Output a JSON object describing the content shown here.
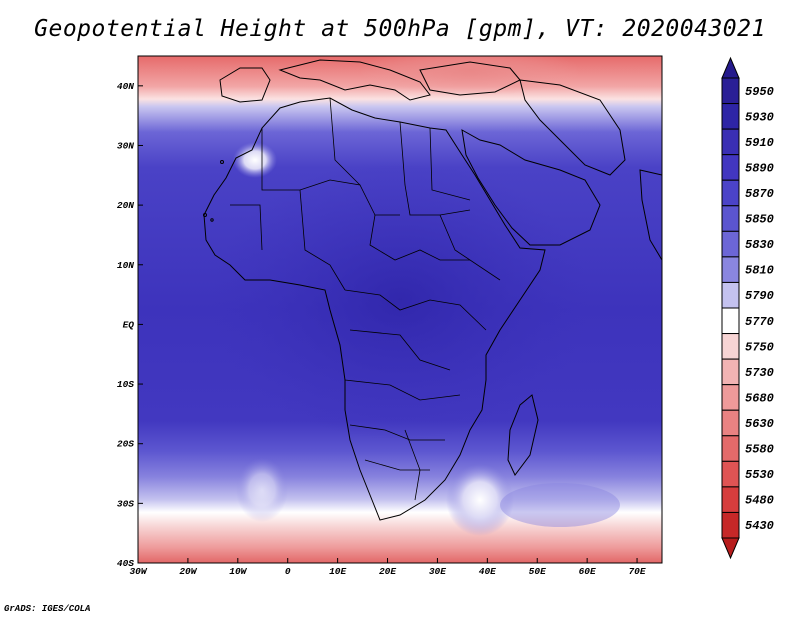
{
  "title": "Geopotential Height at 500hPa [gpm], VT: 2020043021",
  "footer": "GrADS: IGES/COLA",
  "map": {
    "lon_range": [
      -30,
      75
    ],
    "lat_range": [
      -40,
      45
    ],
    "lat_ticks": [
      {
        "value": 40,
        "label": "40N"
      },
      {
        "value": 30,
        "label": "30N"
      },
      {
        "value": 20,
        "label": "20N"
      },
      {
        "value": 10,
        "label": "10N"
      },
      {
        "value": 0,
        "label": "EQ"
      },
      {
        "value": -10,
        "label": "10S"
      },
      {
        "value": -20,
        "label": "20S"
      },
      {
        "value": -30,
        "label": "30S"
      },
      {
        "value": -40,
        "label": "40S"
      }
    ],
    "lon_ticks": [
      {
        "value": -30,
        "label": "30W"
      },
      {
        "value": -20,
        "label": "20W"
      },
      {
        "value": -10,
        "label": "10W"
      },
      {
        "value": 0,
        "label": "0"
      },
      {
        "value": 10,
        "label": "10E"
      },
      {
        "value": 20,
        "label": "20E"
      },
      {
        "value": 30,
        "label": "30E"
      },
      {
        "value": 40,
        "label": "40E"
      },
      {
        "value": 50,
        "label": "50E"
      },
      {
        "value": 60,
        "label": "60E"
      },
      {
        "value": 70,
        "label": "70E"
      }
    ]
  },
  "colorbar": {
    "levels": [
      {
        "label": "5950",
        "color": "#2a1f96"
      },
      {
        "label": "5930",
        "color": "#2e25a6"
      },
      {
        "label": "5910",
        "color": "#3a2fb4"
      },
      {
        "label": "5890",
        "color": "#4236c0"
      },
      {
        "label": "5870",
        "color": "#4b43c8"
      },
      {
        "label": "5850",
        "color": "#5b55d0"
      },
      {
        "label": "5830",
        "color": "#6c66d6"
      },
      {
        "label": "5810",
        "color": "#8a86e0"
      },
      {
        "label": "5790",
        "color": "#c4c2ef"
      },
      {
        "label": "5770",
        "color": "#ffffff"
      },
      {
        "label": "5750",
        "color": "#f7d4d4"
      },
      {
        "label": "5730",
        "color": "#f2b3b3"
      },
      {
        "label": "5680",
        "color": "#ee9a9a"
      },
      {
        "label": "5630",
        "color": "#e98282"
      },
      {
        "label": "5580",
        "color": "#e46a6a"
      },
      {
        "label": "5530",
        "color": "#df5454"
      },
      {
        "label": "5480",
        "color": "#d63d3d"
      },
      {
        "label": "5430",
        "color": "#c62828"
      }
    ],
    "top_triangle_color": "#251a8c",
    "bottom_triangle_color": "#b71c1c"
  }
}
